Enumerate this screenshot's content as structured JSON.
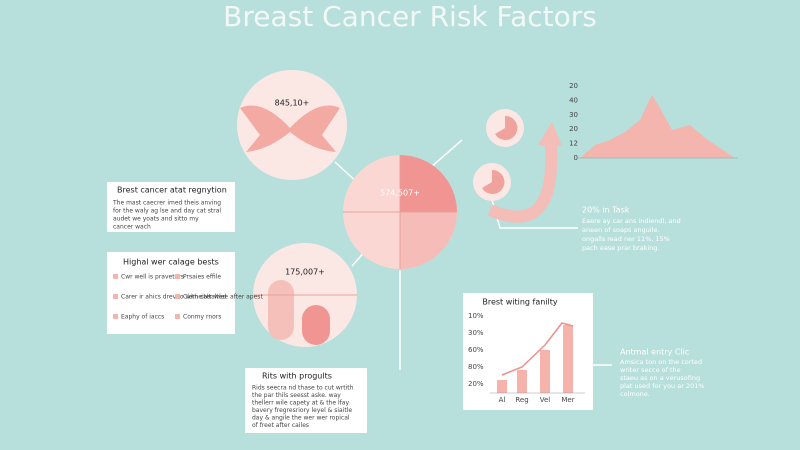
{
  "header": {
    "title": "Breast Cancer Risk Factors"
  },
  "circles": {
    "top": "845,10+",
    "center": "574,507+",
    "lower": "175,007+"
  },
  "box1": {
    "title": "Brest cancer atat regnytion",
    "lines": [
      "The mast caecrer imed theis anving",
      "for the waly ag lse and day cat stral",
      "audet we yoats and sitto my",
      "cancer wach"
    ]
  },
  "box2": {
    "title": "Highal wer calage bests",
    "items": [
      "Cwr well is praveters",
      "Prsaies effile",
      "Carer ir ahics dreveo with caltalted",
      "Clemeiter wlee after apest",
      "Eaphy of iaccs",
      "Conmy rnors"
    ]
  },
  "box3": {
    "title": "Rits with progults",
    "lines": [
      "Rids seecra nd thase to cut wrtith",
      "the par thils seesst aske. way",
      "thellerr wile capety at & the lfay",
      "bavery fregresriory leyel & siaitle",
      "day & angile the wer wer ropical",
      "of freet after cailes"
    ]
  },
  "top_chart": {
    "y_labels": [
      "20",
      "40",
      "30",
      "20",
      "12",
      "0"
    ]
  },
  "right_note": {
    "title": "20% in Task",
    "lines": [
      "Eaere ay car ans indiendl, and",
      "aneen of soaps anguile.",
      "ongalls read ner 11%, 15%",
      "pach ease prar braking."
    ]
  },
  "bottom_chart": {
    "title": "Brest witing fanilty",
    "y_labels": [
      "10%",
      "30%",
      "60%",
      "80%",
      "20%"
    ],
    "x_labels": [
      "Al",
      "Reg",
      "Vel",
      "Mer"
    ]
  },
  "bottom_note": {
    "title": "Antmal entry Clic",
    "lines": [
      "Amsica ton on the corted",
      "writer secce of the",
      "staeu as on a verusofing",
      "plat used for you ar 201%",
      "colmone."
    ]
  }
}
